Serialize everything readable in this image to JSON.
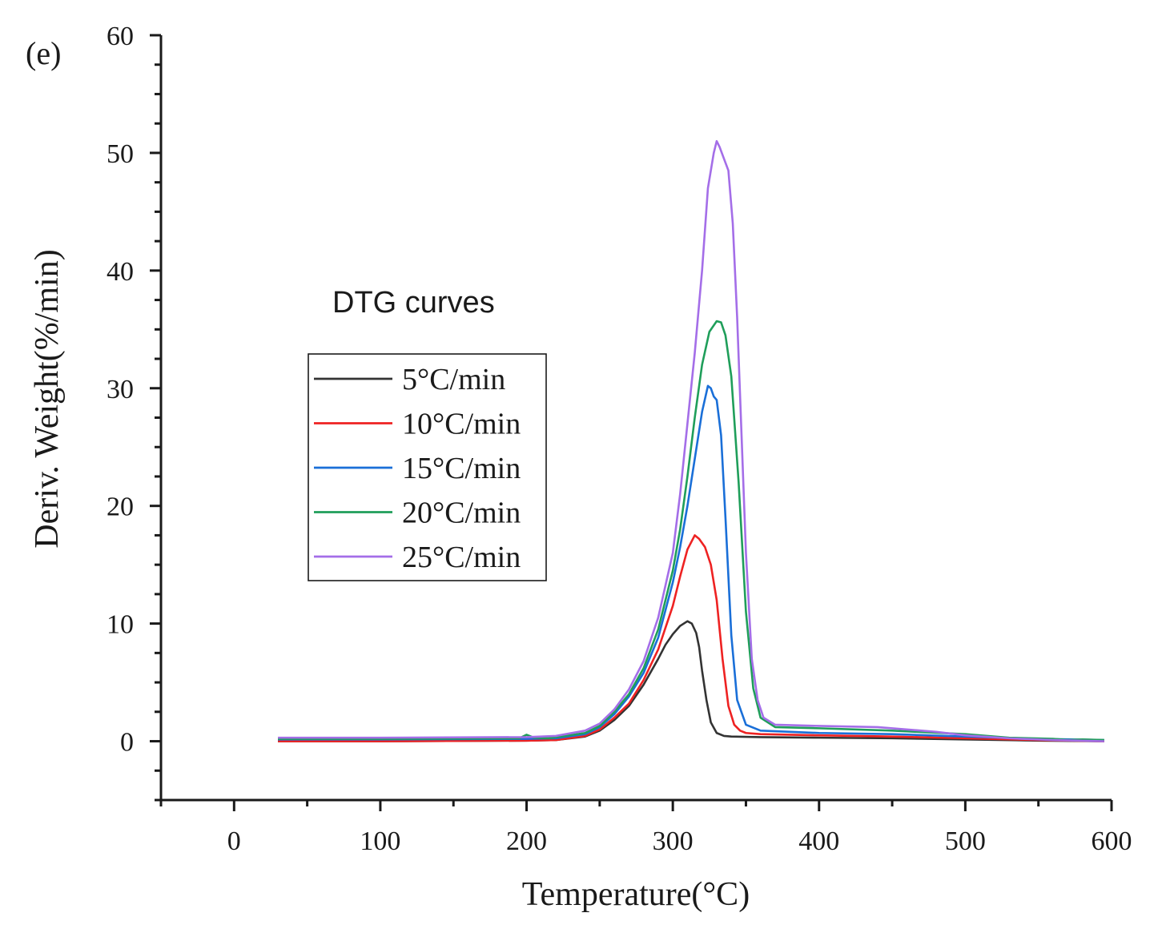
{
  "panel_label": "(e)",
  "chart_data": {
    "type": "line",
    "title": "",
    "annotation": "DTG  curves",
    "xlabel": "Temperature(°C)",
    "ylabel": "Deriv. Weight(%/min)",
    "xlim": [
      -50,
      600
    ],
    "ylim": [
      -5,
      60
    ],
    "xticks": [
      0,
      100,
      200,
      300,
      400,
      500,
      600
    ],
    "yticks": [
      0,
      10,
      20,
      30,
      40,
      50,
      60
    ],
    "grid": false,
    "legend_position": "center-left",
    "series": [
      {
        "name": "5°C/min",
        "color": "#333333",
        "x": [
          30,
          100,
          200,
          220,
          240,
          250,
          260,
          270,
          280,
          290,
          295,
          300,
          305,
          310,
          313,
          316,
          318,
          320,
          323,
          326,
          330,
          335,
          340,
          360,
          400,
          450,
          500,
          550,
          595
        ],
        "y": [
          0.0,
          0.0,
          0.05,
          0.1,
          0.4,
          0.9,
          1.8,
          3.0,
          4.8,
          7.0,
          8.2,
          9.1,
          9.8,
          10.2,
          10.0,
          9.2,
          8.0,
          6.0,
          3.5,
          1.6,
          0.7,
          0.45,
          0.4,
          0.35,
          0.3,
          0.25,
          0.15,
          0.05,
          0.0
        ]
      },
      {
        "name": "10°C/min",
        "color": "#ee2222",
        "x": [
          30,
          100,
          200,
          220,
          240,
          250,
          260,
          270,
          280,
          290,
          300,
          305,
          310,
          315,
          318,
          322,
          326,
          330,
          334,
          338,
          342,
          346,
          350,
          360,
          400,
          450,
          500,
          550,
          595
        ],
        "y": [
          0.0,
          0.0,
          0.05,
          0.1,
          0.45,
          1.0,
          2.0,
          3.2,
          5.2,
          7.8,
          11.5,
          14.0,
          16.3,
          17.5,
          17.2,
          16.5,
          15.0,
          12.0,
          7.0,
          3.0,
          1.4,
          0.9,
          0.7,
          0.6,
          0.5,
          0.4,
          0.25,
          0.1,
          0.0
        ]
      },
      {
        "name": "15°C/min",
        "color": "#1a6fd8",
        "x": [
          30,
          100,
          200,
          220,
          240,
          250,
          260,
          270,
          280,
          290,
          300,
          305,
          310,
          315,
          320,
          324,
          326,
          328,
          330,
          333,
          336,
          340,
          344,
          350,
          360,
          400,
          450,
          500,
          550,
          595
        ],
        "y": [
          0.15,
          0.15,
          0.2,
          0.25,
          0.6,
          1.2,
          2.3,
          3.8,
          5.8,
          8.8,
          13.5,
          16.5,
          20.0,
          24.0,
          28.0,
          30.2,
          30.0,
          29.3,
          29.0,
          26.0,
          19.0,
          9.0,
          3.5,
          1.4,
          0.9,
          0.7,
          0.6,
          0.4,
          0.2,
          0.1
        ]
      },
      {
        "name": "20°C/min",
        "color": "#1f9e5a",
        "x": [
          30,
          100,
          195,
          200,
          205,
          215,
          240,
          250,
          260,
          270,
          280,
          290,
          300,
          305,
          310,
          315,
          320,
          325,
          330,
          333,
          336,
          340,
          345,
          350,
          355,
          360,
          370,
          400,
          450,
          500,
          530,
          560,
          570,
          580,
          595
        ],
        "y": [
          0.2,
          0.2,
          0.25,
          0.55,
          0.3,
          0.25,
          0.7,
          1.3,
          2.5,
          4.0,
          6.2,
          9.5,
          14.5,
          18.0,
          22.5,
          27.5,
          32.0,
          34.8,
          35.7,
          35.6,
          34.5,
          31.0,
          22.0,
          11.0,
          4.5,
          2.0,
          1.2,
          1.1,
          0.9,
          0.6,
          0.3,
          0.2,
          0.1,
          0.15,
          0.1
        ]
      },
      {
        "name": "25°C/min",
        "color": "#a46ee8",
        "x": [
          30,
          100,
          200,
          220,
          240,
          250,
          260,
          270,
          280,
          290,
          300,
          305,
          310,
          315,
          320,
          324,
          328,
          330,
          332,
          335,
          338,
          341,
          344,
          347,
          350,
          354,
          358,
          362,
          370,
          400,
          440,
          480,
          500,
          530,
          560,
          595
        ],
        "y": [
          0.3,
          0.3,
          0.35,
          0.45,
          0.9,
          1.5,
          2.7,
          4.4,
          6.8,
          10.5,
          16.0,
          21.0,
          27.0,
          33.0,
          40.0,
          47.0,
          50.0,
          51.0,
          50.5,
          49.5,
          48.5,
          44.0,
          36.0,
          26.0,
          16.0,
          7.0,
          3.5,
          2.0,
          1.4,
          1.3,
          1.2,
          0.8,
          0.5,
          0.25,
          0.1,
          0.0
        ]
      }
    ]
  }
}
